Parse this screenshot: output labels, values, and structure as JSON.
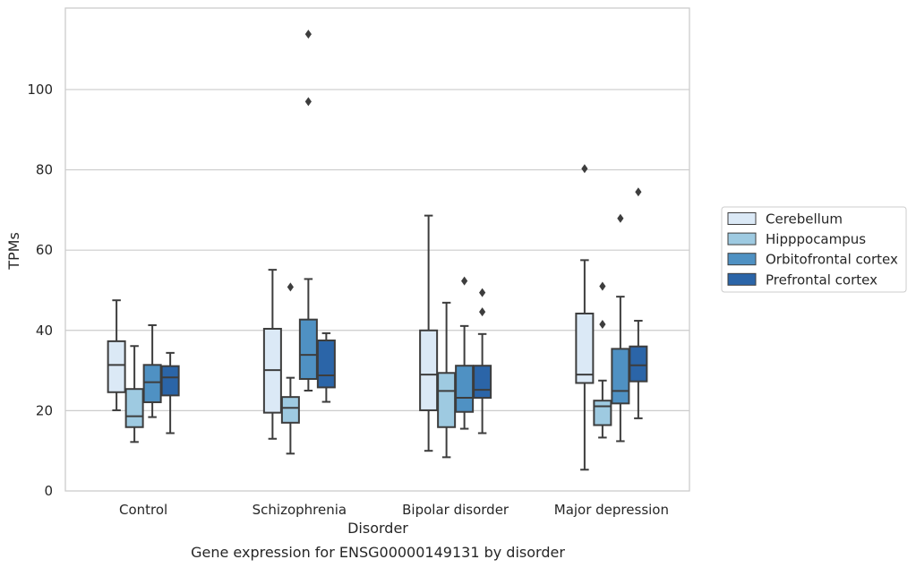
{
  "chart_data": {
    "type": "box",
    "title": "",
    "caption": "Gene expression for ENSG00000149131 by disorder",
    "xlabel": "Disorder",
    "ylabel": "TPMs",
    "ylim": [
      0,
      120
    ],
    "yticks": [
      0,
      20,
      40,
      60,
      80,
      100
    ],
    "grid": true,
    "legend_position": "right",
    "categories": [
      "Control",
      "Schizophrenia",
      "Bipolar disorder",
      "Major depression"
    ],
    "series": [
      {
        "name": "Cerebellum",
        "color": "#dbe9f6",
        "boxes": [
          {
            "whisker_low": 20.1,
            "q1": 24.6,
            "median": 31.4,
            "q3": 37.3,
            "whisker_high": 47.5,
            "outliers": []
          },
          {
            "whisker_low": 13.0,
            "q1": 19.5,
            "median": 30.1,
            "q3": 40.4,
            "whisker_high": 55.1,
            "outliers": []
          },
          {
            "whisker_low": 10.0,
            "q1": 20.1,
            "median": 29.0,
            "q3": 40.0,
            "whisker_high": 68.6,
            "outliers": []
          },
          {
            "whisker_low": 5.3,
            "q1": 26.9,
            "median": 29.0,
            "q3": 44.2,
            "whisker_high": 57.5,
            "outliers": [
              80.3
            ]
          }
        ]
      },
      {
        "name": "Hipppocampus",
        "color": "#9ecae1",
        "boxes": [
          {
            "whisker_low": 12.2,
            "q1": 15.9,
            "median": 18.6,
            "q3": 25.4,
            "whisker_high": 36.1,
            "outliers": []
          },
          {
            "whisker_low": 9.3,
            "q1": 17.0,
            "median": 20.7,
            "q3": 23.4,
            "whisker_high": 28.2,
            "outliers": [
              50.8
            ]
          },
          {
            "whisker_low": 8.4,
            "q1": 15.9,
            "median": 24.9,
            "q3": 29.4,
            "whisker_high": 46.9,
            "outliers": []
          },
          {
            "whisker_low": 13.3,
            "q1": 16.4,
            "median": 21.1,
            "q3": 22.5,
            "whisker_high": 27.5,
            "outliers": [
              51.0,
              41.5
            ]
          }
        ]
      },
      {
        "name": "Orbitofrontal cortex",
        "color": "#4f91c3",
        "boxes": [
          {
            "whisker_low": 18.4,
            "q1": 22.1,
            "median": 27.1,
            "q3": 31.4,
            "whisker_high": 41.3,
            "outliers": []
          },
          {
            "whisker_low": 25.0,
            "q1": 27.9,
            "median": 33.9,
            "q3": 42.7,
            "whisker_high": 52.8,
            "outliers": [
              113.8,
              97.0
            ]
          },
          {
            "whisker_low": 15.5,
            "q1": 19.7,
            "median": 23.2,
            "q3": 31.2,
            "whisker_high": 41.1,
            "outliers": [
              52.3
            ]
          },
          {
            "whisker_low": 12.4,
            "q1": 21.8,
            "median": 24.9,
            "q3": 35.4,
            "whisker_high": 48.4,
            "outliers": [
              67.9
            ]
          }
        ]
      },
      {
        "name": "Prefrontal cortex",
        "color": "#2b65a8",
        "boxes": [
          {
            "whisker_low": 14.4,
            "q1": 23.8,
            "median": 28.3,
            "q3": 31.1,
            "whisker_high": 34.4,
            "outliers": []
          },
          {
            "whisker_low": 22.2,
            "q1": 25.8,
            "median": 28.8,
            "q3": 37.5,
            "whisker_high": 39.3,
            "outliers": []
          },
          {
            "whisker_low": 14.4,
            "q1": 23.2,
            "median": 25.2,
            "q3": 31.2,
            "whisker_high": 39.1,
            "outliers": [
              49.4,
              44.6
            ]
          },
          {
            "whisker_low": 18.1,
            "q1": 27.3,
            "median": 31.3,
            "q3": 36.0,
            "whisker_high": 42.4,
            "outliers": [
              74.5
            ]
          }
        ]
      }
    ]
  }
}
